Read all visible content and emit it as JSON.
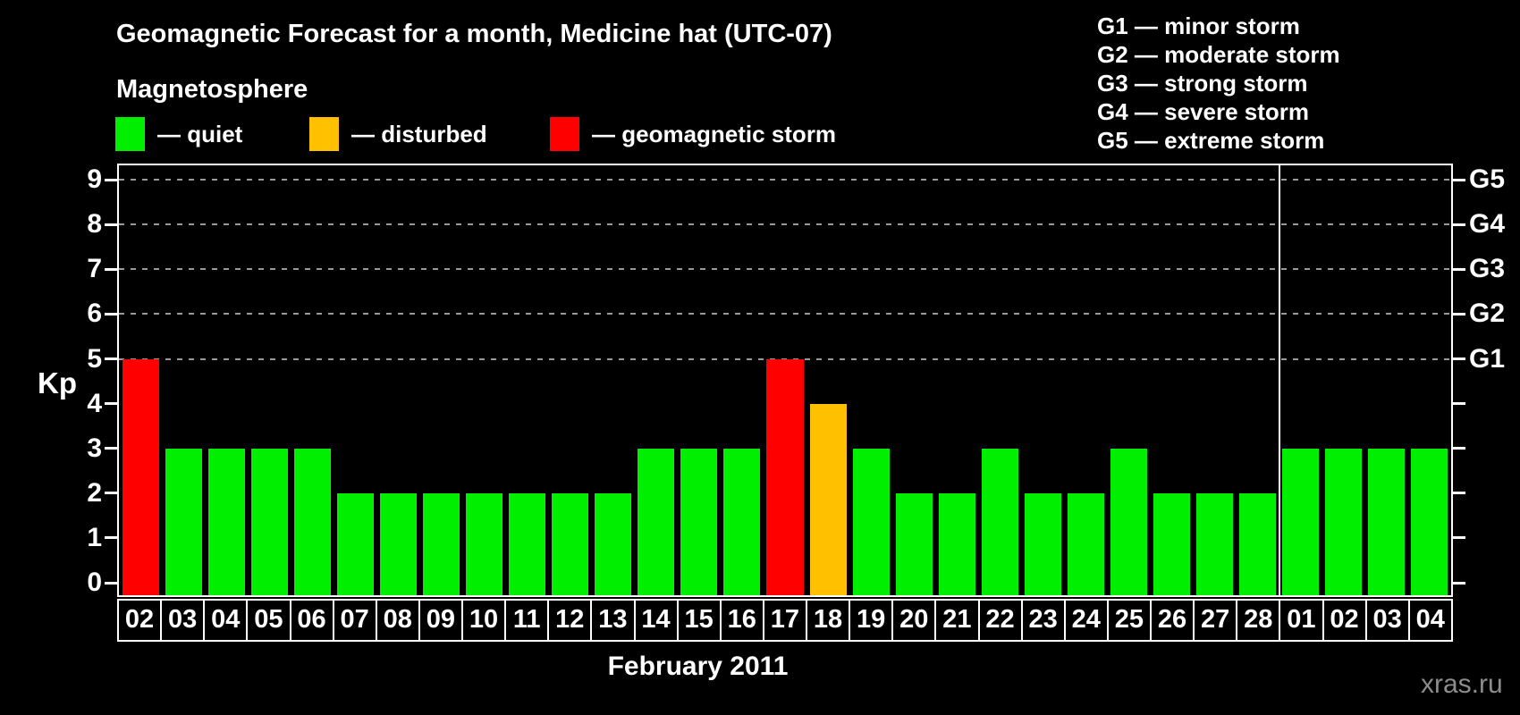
{
  "header": {
    "title": "Geomagnetic Forecast for a month, Medicine hat (UTC-07)",
    "subtitle": "Magnetosphere"
  },
  "legend": {
    "items": [
      {
        "key": "quiet",
        "label": "— quiet",
        "color": "#00ee00"
      },
      {
        "key": "disturbed",
        "label": "— disturbed",
        "color": "#ffc000"
      },
      {
        "key": "storm",
        "label": "— geomagnetic storm",
        "color": "#ff0000"
      }
    ]
  },
  "g_scale_legend": {
    "items": [
      "G1 — minor storm",
      "G2 — moderate storm",
      "G3 — strong storm",
      "G4 — severe storm",
      "G5 — extreme storm"
    ]
  },
  "watermark": "xras.ru",
  "chart_data": {
    "type": "bar",
    "title": "Geomagnetic Forecast for a month, Medicine hat (UTC-07)",
    "xlabel": "February 2011",
    "ylabel": "Kp",
    "ylim": [
      0,
      9.4
    ],
    "yticks": [
      0,
      1,
      2,
      3,
      4,
      5,
      6,
      7,
      8,
      9
    ],
    "grid": true,
    "gridlines_at": [
      5,
      6,
      7,
      8,
      9
    ],
    "right_axis": [
      {
        "kp": 5,
        "label": "G1"
      },
      {
        "kp": 6,
        "label": "G2"
      },
      {
        "kp": 7,
        "label": "G3"
      },
      {
        "kp": 8,
        "label": "G4"
      },
      {
        "kp": 9,
        "label": "G5"
      }
    ],
    "status_colors": {
      "quiet": "#00ee00",
      "disturbed": "#ffc000",
      "storm": "#ff0000"
    },
    "month_separator_after_index": 26,
    "categories": [
      "02",
      "03",
      "04",
      "05",
      "06",
      "07",
      "08",
      "09",
      "10",
      "11",
      "12",
      "13",
      "14",
      "15",
      "16",
      "17",
      "18",
      "19",
      "20",
      "21",
      "22",
      "23",
      "24",
      "25",
      "26",
      "27",
      "28",
      "01",
      "02",
      "03",
      "04"
    ],
    "days": [
      {
        "date": "02",
        "kp": 5,
        "status": "storm"
      },
      {
        "date": "03",
        "kp": 3,
        "status": "quiet"
      },
      {
        "date": "04",
        "kp": 3,
        "status": "quiet"
      },
      {
        "date": "05",
        "kp": 3,
        "status": "quiet"
      },
      {
        "date": "06",
        "kp": 3,
        "status": "quiet"
      },
      {
        "date": "07",
        "kp": 2,
        "status": "quiet"
      },
      {
        "date": "08",
        "kp": 2,
        "status": "quiet"
      },
      {
        "date": "09",
        "kp": 2,
        "status": "quiet"
      },
      {
        "date": "10",
        "kp": 2,
        "status": "quiet"
      },
      {
        "date": "11",
        "kp": 2,
        "status": "quiet"
      },
      {
        "date": "12",
        "kp": 2,
        "status": "quiet"
      },
      {
        "date": "13",
        "kp": 2,
        "status": "quiet"
      },
      {
        "date": "14",
        "kp": 3,
        "status": "quiet"
      },
      {
        "date": "15",
        "kp": 3,
        "status": "quiet"
      },
      {
        "date": "16",
        "kp": 3,
        "status": "quiet"
      },
      {
        "date": "17",
        "kp": 5,
        "status": "storm"
      },
      {
        "date": "18",
        "kp": 4,
        "status": "disturbed"
      },
      {
        "date": "19",
        "kp": 3,
        "status": "quiet"
      },
      {
        "date": "20",
        "kp": 2,
        "status": "quiet"
      },
      {
        "date": "21",
        "kp": 2,
        "status": "quiet"
      },
      {
        "date": "22",
        "kp": 3,
        "status": "quiet"
      },
      {
        "date": "23",
        "kp": 2,
        "status": "quiet"
      },
      {
        "date": "24",
        "kp": 2,
        "status": "quiet"
      },
      {
        "date": "25",
        "kp": 3,
        "status": "quiet"
      },
      {
        "date": "26",
        "kp": 2,
        "status": "quiet"
      },
      {
        "date": "27",
        "kp": 2,
        "status": "quiet"
      },
      {
        "date": "28",
        "kp": 2,
        "status": "quiet"
      },
      {
        "date": "01",
        "kp": 3,
        "status": "quiet"
      },
      {
        "date": "02",
        "kp": 3,
        "status": "quiet"
      },
      {
        "date": "03",
        "kp": 3,
        "status": "quiet"
      },
      {
        "date": "04",
        "kp": 3,
        "status": "quiet"
      }
    ]
  }
}
